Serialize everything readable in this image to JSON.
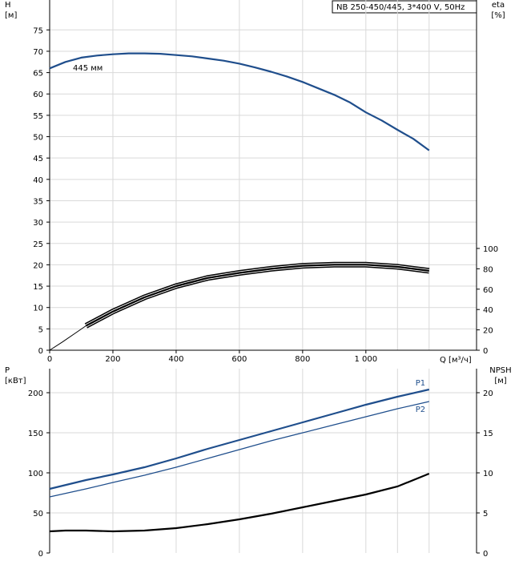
{
  "legend": "NB 250-450/445, 3*400 V, 50Hz",
  "chart_data": [
    {
      "type": "line",
      "name": "top-panel",
      "x_label": "Q [м³/ч]",
      "x_ticks": [
        0,
        200,
        400,
        600,
        800,
        1000
      ],
      "x_tick_labels": [
        "0",
        "200",
        "400",
        "600",
        "800",
        "1 000"
      ],
      "xlim": [
        0,
        1350
      ],
      "left_axis": {
        "label_line1": "H",
        "label_line2": "[м]",
        "ticks": [
          0,
          5,
          10,
          15,
          20,
          25,
          30,
          35,
          40,
          45,
          50,
          55,
          60,
          65,
          70,
          75
        ],
        "lim": [
          0,
          82
        ]
      },
      "right_axis": {
        "label_line1": "eta",
        "label_line2": "[%]",
        "ticks": [
          0,
          20,
          40,
          60,
          80,
          100
        ],
        "lim": [
          0,
          100
        ]
      },
      "annotation": "445 мм",
      "series": [
        {
          "axis": "left",
          "color": "#1f4e8c",
          "width": 2.2,
          "x": [
            0,
            50,
            100,
            150,
            200,
            250,
            300,
            350,
            400,
            450,
            500,
            550,
            600,
            650,
            700,
            750,
            800,
            850,
            900,
            950,
            1000,
            1050,
            1100,
            1150,
            1200
          ],
          "y": [
            66.0,
            67.5,
            68.5,
            69.0,
            69.3,
            69.5,
            69.5,
            69.4,
            69.1,
            68.8,
            68.3,
            67.8,
            67.1,
            66.2,
            65.2,
            64.1,
            62.8,
            61.3,
            59.8,
            58.0,
            55.7,
            53.8,
            51.6,
            49.5,
            46.8
          ]
        },
        {
          "axis": "right",
          "color": "#000000",
          "width": 2.2,
          "outline": true,
          "x": [
            115,
            200,
            300,
            400,
            500,
            600,
            700,
            800,
            900,
            1000,
            1100,
            1200
          ],
          "y": [
            24.0,
            38.0,
            52.0,
            63.0,
            71.0,
            76.0,
            80.0,
            83.0,
            84.0,
            84.0,
            82.0,
            78.0
          ]
        },
        {
          "axis": "right",
          "color": "#000000",
          "width": 1.0,
          "x": [
            0,
            40,
            80,
            115
          ],
          "y": [
            0,
            8.0,
            16.5,
            24.0
          ]
        }
      ]
    },
    {
      "type": "line",
      "name": "bottom-panel",
      "left_axis": {
        "label_line1": "P",
        "label_line2": "[кВт]",
        "ticks": [
          0,
          50,
          100,
          150,
          200
        ],
        "lim": [
          0,
          230
        ]
      },
      "right_axis": {
        "label_line1": "NPSH",
        "label_line2": "[м]",
        "ticks": [
          0,
          5,
          10,
          15,
          20
        ],
        "lim": [
          0,
          23
        ]
      },
      "xlim": [
        0,
        1350
      ],
      "series": [
        {
          "name": "P1",
          "axis": "left",
          "color": "#1f4e8c",
          "width": 2.2,
          "x": [
            0,
            115,
            200,
            300,
            400,
            500,
            600,
            700,
            800,
            900,
            1000,
            1100,
            1200
          ],
          "y": [
            80,
            91,
            98,
            107,
            118,
            130,
            141,
            152,
            163,
            174,
            185,
            195,
            204
          ]
        },
        {
          "name": "P2",
          "axis": "left",
          "color": "#1f4e8c",
          "width": 1.2,
          "x": [
            0,
            115,
            200,
            300,
            400,
            500,
            600,
            700,
            800,
            900,
            1000,
            1100,
            1200
          ],
          "y": [
            70,
            80,
            88,
            97,
            107,
            118,
            129,
            140,
            150,
            160,
            170,
            180,
            189
          ]
        },
        {
          "name": "NPSH",
          "axis": "right",
          "color": "#000000",
          "width": 2.2,
          "x": [
            0,
            50,
            115,
            200,
            300,
            400,
            500,
            600,
            700,
            800,
            900,
            1000,
            1100,
            1200
          ],
          "y": [
            2.7,
            2.8,
            2.8,
            2.7,
            2.8,
            3.1,
            3.6,
            4.2,
            4.9,
            5.7,
            6.5,
            7.3,
            8.3,
            9.9
          ]
        }
      ]
    }
  ]
}
